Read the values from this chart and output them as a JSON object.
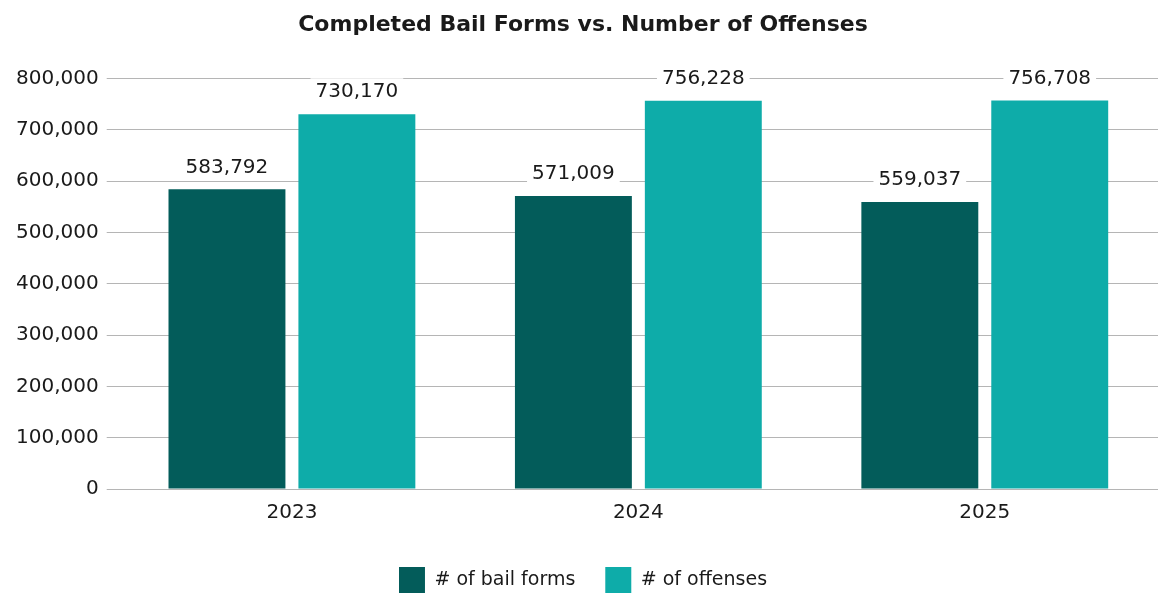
{
  "chart_data": {
    "type": "bar",
    "title": "Completed Bail Forms vs. Number of Offenses",
    "categories": [
      "2023",
      "2024",
      "2025"
    ],
    "series": [
      {
        "name": "# of bail forms",
        "color": "#035c5a",
        "values": [
          583792,
          571009,
          559037
        ],
        "value_labels": [
          "583,792",
          "571,009",
          "559,037"
        ]
      },
      {
        "name": "# of offenses",
        "color": "#0eaca9",
        "values": [
          730170,
          756228,
          756708
        ],
        "value_labels": [
          "730,170",
          "756,228",
          "756,708"
        ]
      }
    ],
    "ylim": [
      0,
      800000
    ],
    "yticks": [
      0,
      {
        "value": 100000,
        "label": "100,000"
      },
      {
        "value": 200000,
        "label": "200,000"
      },
      {
        "value": 300000,
        "label": "300,000"
      },
      {
        "value": 400000,
        "label": "400,000"
      },
      {
        "value": 500000,
        "label": "500,000"
      },
      {
        "value": 600000,
        "label": "600,000"
      },
      {
        "value": 700000,
        "label": "700,000"
      },
      {
        "value": 800000,
        "label": "800,000"
      }
    ],
    "grid": "y",
    "legend": "bottom"
  }
}
